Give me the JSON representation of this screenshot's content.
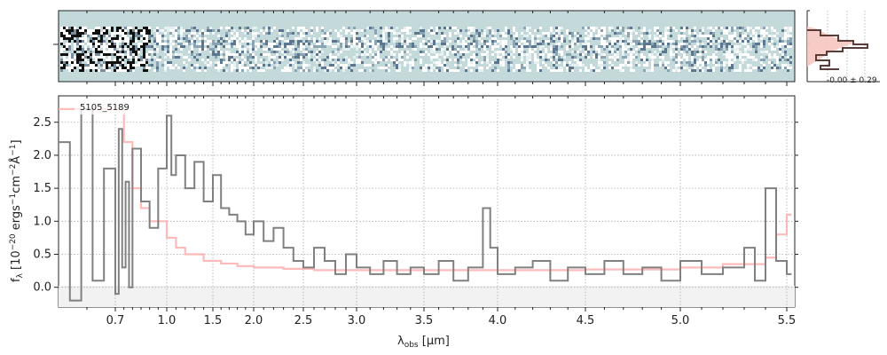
{
  "chart_data": [
    {
      "type": "line",
      "panel": "spectrum",
      "object_label": "5105_5189",
      "xlabel": "λobs [μm]",
      "xlabel_main": "λ",
      "xlabel_sub": "obs",
      "xlabel_unit": " [μm]",
      "ylabel": "fλ [10^-20 ergs^-1cm^-2Å^-1]",
      "x_scale": "nonlinear (approximately reciprocal-wavelength-like)",
      "xlim": [
        0.6,
        5.55
      ],
      "ylim": [
        -0.3,
        2.9
      ],
      "x_ticks": [
        "0.7",
        "1.0",
        "1.5",
        "2.0",
        "2.5",
        "3.0",
        "3.5",
        "4.0",
        "4.5",
        "5.0",
        "5.5"
      ],
      "y_ticks": [
        "0.0",
        "0.5",
        "1.0",
        "1.5",
        "2.0",
        "2.5"
      ],
      "grid": true,
      "series": [
        {
          "color": "#808080",
          "style": "steps",
          "x": [
            0.6,
            0.62,
            0.64,
            0.66,
            0.68,
            0.7,
            0.72,
            0.74,
            0.76,
            0.78,
            0.8,
            0.85,
            0.9,
            0.95,
            1.0,
            1.05,
            1.1,
            1.2,
            1.3,
            1.4,
            1.5,
            1.6,
            1.7,
            1.8,
            1.9,
            2.0,
            2.1,
            2.2,
            2.3,
            2.4,
            2.5,
            2.6,
            2.7,
            2.8,
            2.9,
            3.0,
            3.1,
            3.2,
            3.3,
            3.4,
            3.5,
            3.6,
            3.7,
            3.8,
            3.9,
            3.95,
            4.0,
            4.1,
            4.2,
            4.3,
            4.4,
            4.5,
            4.6,
            4.7,
            4.8,
            4.9,
            5.0,
            5.1,
            5.2,
            5.3,
            5.35,
            5.4,
            5.45,
            5.5
          ],
          "values": [
            2.2,
            -0.2,
            2.7,
            0.1,
            1.8,
            -0.1,
            2.4,
            0.3,
            1.6,
            0.0,
            2.1,
            1.3,
            0.9,
            1.8,
            2.6,
            1.7,
            2.0,
            1.5,
            1.9,
            1.3,
            1.7,
            1.2,
            1.1,
            1.0,
            0.8,
            1.0,
            0.7,
            0.9,
            0.6,
            0.4,
            0.3,
            0.6,
            0.4,
            0.2,
            0.5,
            0.3,
            0.2,
            0.4,
            0.2,
            0.3,
            0.2,
            0.4,
            0.1,
            0.3,
            1.2,
            0.6,
            0.2,
            0.3,
            0.4,
            0.1,
            0.3,
            0.2,
            0.4,
            0.2,
            0.3,
            0.1,
            0.4,
            0.2,
            0.3,
            0.6,
            0.1,
            1.5,
            0.4,
            0.2
          ]
        },
        {
          "color": "#ffb3b3",
          "style": "steps",
          "x": [
            0.6,
            0.7,
            0.75,
            0.8,
            0.85,
            0.9,
            1.0,
            1.1,
            1.2,
            1.4,
            1.6,
            1.8,
            2.0,
            2.3,
            2.6,
            3.0,
            3.5,
            4.0,
            4.5,
            5.0,
            5.2,
            5.4,
            5.45,
            5.5
          ],
          "values": [
            2.7,
            2.7,
            2.2,
            1.5,
            1.2,
            1.0,
            0.75,
            0.6,
            0.5,
            0.4,
            0.36,
            0.32,
            0.3,
            0.28,
            0.26,
            0.26,
            0.26,
            0.26,
            0.27,
            0.3,
            0.35,
            0.45,
            0.8,
            1.1
          ]
        }
      ]
    },
    {
      "type": "heatmap",
      "panel": "2d-spectrum",
      "colormap": "blue-gray on pale teal"
    },
    {
      "type": "line",
      "panel": "profile",
      "annotation": "-0.00 ± 0.29",
      "series": [
        {
          "color": "#ffb3b3",
          "style": "filled"
        },
        {
          "color": "#5a3d38",
          "style": "steps"
        }
      ]
    }
  ]
}
